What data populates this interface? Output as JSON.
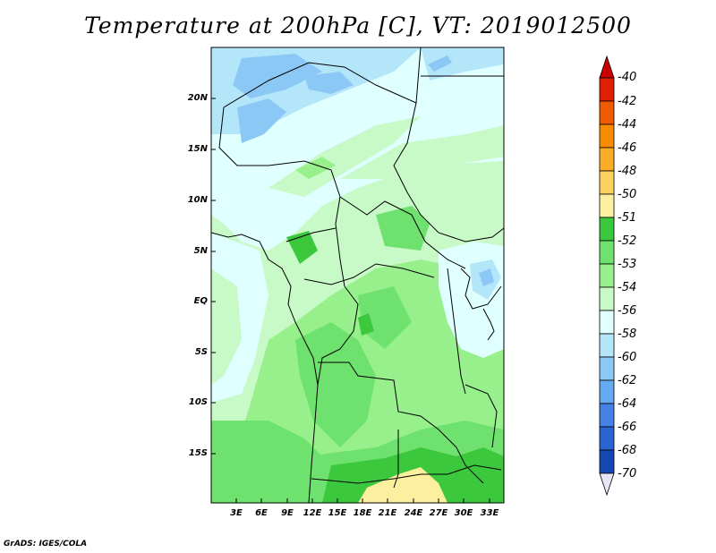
{
  "title": "Temperature at 200hPa [C], VT: 2019012500",
  "credit": "GrADS: IGES/COLA",
  "map": {
    "lat_labels": [
      "20N",
      "15N",
      "10N",
      "5N",
      "EQ",
      "5S",
      "10S",
      "15S"
    ],
    "lon_labels": [
      "3E",
      "6E",
      "9E",
      "12E",
      "15E",
      "18E",
      "21E",
      "24E",
      "27E",
      "30E",
      "33E"
    ]
  },
  "colorbar": {
    "labels": [
      "-40",
      "-42",
      "-44",
      "-46",
      "-48",
      "-50",
      "-51",
      "-52",
      "-53",
      "-54",
      "-56",
      "-58",
      "-60",
      "-62",
      "-64",
      "-66",
      "-68",
      "-70"
    ],
    "colors": [
      "#e02000",
      "#f05a00",
      "#f88c00",
      "#faae28",
      "#fbd260",
      "#fcf0a0",
      "#3cc83c",
      "#6ee16e",
      "#98f08c",
      "#c8fac8",
      "#e0ffff",
      "#b4e6fa",
      "#8cc8f5",
      "#64aaf0",
      "#4682e6",
      "#2864d2",
      "#1446b4",
      "#0a1e78"
    ],
    "max_arrow_color": "#c80000",
    "min_arrow_color": "#e6e6f5"
  }
}
